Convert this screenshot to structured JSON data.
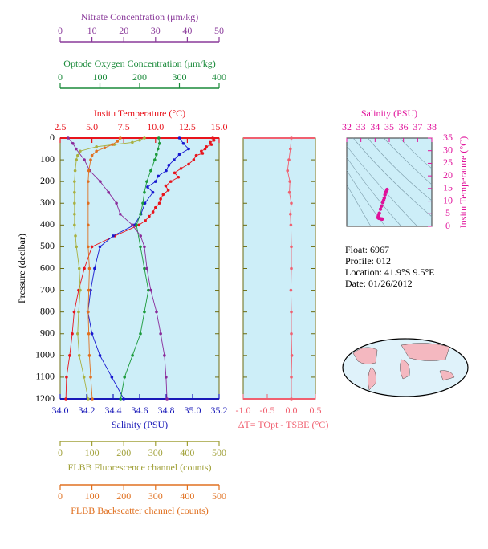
{
  "chart_data": [
    {
      "type": "profile",
      "ylabel": "Pressure (decibar)",
      "ylim": [
        0,
        1200
      ],
      "y_reversed": true,
      "yticks": [
        0,
        100,
        200,
        300,
        400,
        500,
        600,
        700,
        800,
        900,
        1000,
        1100,
        1200
      ],
      "xaxes": [
        {
          "label": "Insitu Temperature (°C)",
          "color": "#e8141c",
          "xlim": [
            2.5,
            15
          ],
          "xticks": [
            2.5,
            {
              "value": 5,
              "label": "5.0"
            },
            7.5,
            {
              "value": 10,
              "label": "10.0"
            },
            12.5,
            {
              "value": 15,
              "label": "15.0"
            }
          ]
        },
        {
          "label": "Salinity (PSU)",
          "color": "#1818b8",
          "xlim": [
            34.0,
            35.2
          ],
          "xticks": [
            {
              "value": 34,
              "label": "34.0"
            },
            34.2,
            34.4,
            34.6,
            34.8,
            {
              "value": 35,
              "label": "35.0"
            },
            35.2
          ]
        },
        {
          "label": "Optode Oxygen Concentration (μm/kg)",
          "color": "#1a8a3a",
          "xlim": [
            0,
            400
          ],
          "xticks": [
            0,
            100,
            200,
            300,
            400
          ]
        },
        {
          "label": "Nitrate Concentration (μm/kg)",
          "color": "#8a3a9a",
          "xlim": [
            0,
            50
          ],
          "xticks": [
            0,
            10,
            20,
            30,
            40,
            50
          ]
        },
        {
          "label": "FLBB Fluorescence channel (counts)",
          "color": "#a0a038",
          "xlim": [
            0,
            500
          ],
          "xticks": [
            0,
            100,
            200,
            300,
            400,
            500
          ]
        },
        {
          "label": "FLBB Backscatter channel (counts)",
          "color": "#e07020",
          "xlim": [
            0,
            500
          ],
          "xticks": [
            0,
            100,
            200,
            300,
            400,
            500
          ]
        }
      ],
      "series": [
        {
          "axis": 0,
          "color": "#e8141c",
          "pressure": [
            0,
            10,
            20,
            30,
            40,
            50,
            60,
            70,
            80,
            100,
            120,
            140,
            160,
            180,
            200,
            220,
            240,
            260,
            280,
            300,
            320,
            340,
            360,
            380,
            400,
            450,
            500,
            600,
            700,
            800,
            900,
            1000,
            1100,
            1200
          ],
          "values": [
            14.5,
            14.6,
            14.3,
            14.4,
            14.0,
            13.9,
            13.6,
            13.7,
            13.2,
            13.0,
            12.6,
            12.0,
            11.5,
            11.8,
            11.2,
            10.8,
            11.0,
            10.6,
            10.4,
            10.3,
            10.0,
            9.8,
            9.5,
            9.2,
            8.7,
            6.8,
            5.0,
            4.4,
            3.95,
            3.6,
            3.45,
            3.25,
            3.0,
            2.95
          ]
        },
        {
          "axis": 1,
          "color": "#1818d0",
          "pressure": [
            0,
            25,
            50,
            75,
            100,
            125,
            150,
            175,
            200,
            225,
            250,
            300,
            350,
            400,
            450,
            500,
            600,
            700,
            800,
            900,
            1000,
            1100,
            1200
          ],
          "values": [
            34.9,
            34.93,
            34.97,
            34.9,
            34.86,
            34.82,
            34.8,
            34.74,
            34.72,
            34.66,
            34.7,
            34.64,
            34.61,
            34.56,
            34.4,
            34.3,
            34.26,
            34.23,
            34.21,
            34.24,
            34.3,
            34.39,
            34.48
          ]
        },
        {
          "axis": 2,
          "color": "#1a9a3a",
          "pressure": [
            0,
            25,
            50,
            75,
            100,
            150,
            200,
            250,
            300,
            350,
            400,
            500,
            600,
            700,
            800,
            900,
            1000,
            1100,
            1200
          ],
          "values": [
            248,
            250,
            246,
            242,
            238,
            228,
            218,
            212,
            208,
            202,
            192,
            202,
            212,
            222,
            212,
            202,
            182,
            162,
            152
          ]
        },
        {
          "axis": 3,
          "color": "#8a2a9a",
          "pressure": [
            0,
            25,
            50,
            100,
            150,
            200,
            250,
            300,
            350,
            400,
            450,
            500,
            600,
            700,
            800,
            900,
            1000,
            1100,
            1200
          ],
          "values": [
            2.5,
            4,
            5,
            7.6,
            9.3,
            12.6,
            15.2,
            17.7,
            18.9,
            22.7,
            25.3,
            26.5,
            27.3,
            28.5,
            30.3,
            31.6,
            32.8,
            33.3,
            33.6
          ]
        },
        {
          "axis": 4,
          "color": "#a8b040",
          "pressure": [
            0,
            10,
            20,
            30,
            40,
            60,
            80,
            100,
            150,
            200,
            250,
            300,
            350,
            400,
            450,
            500,
            600,
            700,
            800,
            900,
            1000,
            1100,
            1200
          ],
          "values": [
            265,
            250,
            227,
            170,
            114,
            63,
            55,
            51,
            47,
            45,
            45,
            45,
            45,
            45,
            48,
            51,
            60,
            63,
            58,
            55,
            60,
            75,
            88
          ]
        },
        {
          "axis": 5,
          "color": "#e07020",
          "pressure": [
            0,
            15,
            30,
            45,
            60,
            80,
            100,
            150,
            200,
            300,
            400,
            500,
            600,
            700,
            800,
            900,
            1000,
            1100,
            1200
          ],
          "values": [
            189,
            180,
            164,
            140,
            114,
            100,
            96,
            90,
            88,
            88,
            88,
            88,
            92,
            90,
            88,
            90,
            92,
            96,
            101
          ]
        }
      ]
    },
    {
      "type": "profile",
      "xlabel": "ΔT= TOpt - TSBE (°C)",
      "color": "#f06070",
      "xlim": [
        -1.0,
        0.5
      ],
      "xticks": [
        {
          "value": -1,
          "label": "-1.0"
        },
        -0.5,
        {
          "value": 0,
          "label": "0.0"
        },
        0.5
      ],
      "ylim": [
        0,
        1200
      ],
      "y_reversed": true,
      "series": [
        {
          "color": "#f06070",
          "pressure": [
            0,
            50,
            100,
            150,
            200,
            250,
            300,
            350,
            400,
            500,
            600,
            700,
            800,
            900,
            1000,
            1100,
            1200
          ],
          "values": [
            0.0,
            -0.02,
            -0.05,
            -0.08,
            -0.03,
            -0.04,
            0.0,
            -0.02,
            -0.01,
            0.0,
            0.0,
            -0.01,
            0.0,
            0.0,
            0.01,
            0.0,
            0.0
          ]
        }
      ]
    },
    {
      "type": "scatter",
      "title": "Salinity (PSU)",
      "ylabel": "Insitu Temperature (°C)",
      "color": "#e0109a",
      "xlim": [
        32,
        38
      ],
      "xticks": [
        32,
        33,
        34,
        35,
        36,
        37,
        38
      ],
      "ylim": [
        0,
        35
      ],
      "yticks": [
        0,
        5,
        10,
        15,
        20,
        25,
        30,
        35
      ],
      "x": [
        34.85,
        34.82,
        34.75,
        34.7,
        34.65,
        34.6,
        34.55,
        34.45,
        34.38,
        34.3,
        34.25,
        34.22,
        34.22,
        34.28,
        34.4,
        34.5
      ],
      "values": [
        14.6,
        14.2,
        13.5,
        12.5,
        11.2,
        10.3,
        9.5,
        8.0,
        6.8,
        5.2,
        4.3,
        3.8,
        3.4,
        3.2,
        3.0,
        2.9
      ]
    }
  ],
  "info": {
    "float": "Float:  6967",
    "profile": "Profile:  012",
    "location": "Location:  41.9°S   9.5°E",
    "date": "Date:  01/26/2012"
  }
}
